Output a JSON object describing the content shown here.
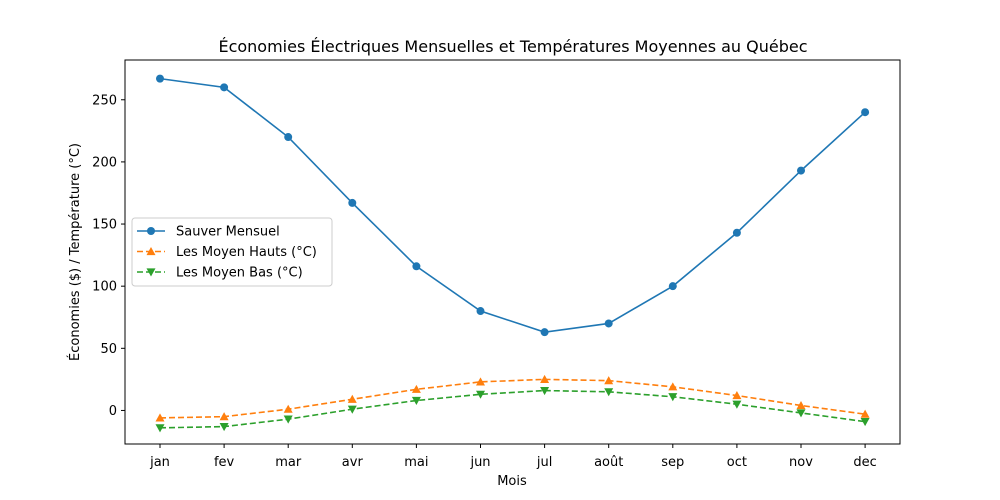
{
  "chart_data": {
    "type": "line",
    "title": "Économies Électriques Mensuelles et Températures Moyennes au Québec",
    "xlabel": "Mois",
    "ylabel": "Économies ($) / Température (°C)",
    "categories": [
      "jan",
      "fev",
      "mar",
      "avr",
      "mai",
      "jun",
      "jul",
      "août",
      "sep",
      "oct",
      "nov",
      "dec"
    ],
    "ylim": [
      -27,
      282
    ],
    "yticks": [
      0,
      50,
      100,
      150,
      200,
      250
    ],
    "grid": false,
    "legend_position": "center-left",
    "series": [
      {
        "name": "Sauver Mensuel",
        "color": "#1f77b4",
        "line_style": "solid",
        "marker": "circle",
        "values": [
          267,
          260,
          220,
          167,
          116,
          80,
          63,
          70,
          100,
          143,
          193,
          240
        ]
      },
      {
        "name": "Les Moyen Hauts (°C)",
        "color": "#ff7f0e",
        "line_style": "dashed",
        "marker": "triangle-up",
        "values": [
          -6,
          -5,
          1,
          9,
          17,
          23,
          25,
          24,
          19,
          12,
          4,
          -3
        ]
      },
      {
        "name": "Les Moyen Bas (°C)",
        "color": "#2ca02c",
        "line_style": "dashed",
        "marker": "triangle-down",
        "values": [
          -14,
          -13,
          -7,
          1,
          8,
          13,
          16,
          15,
          11,
          5,
          -2,
          -9
        ]
      }
    ]
  }
}
